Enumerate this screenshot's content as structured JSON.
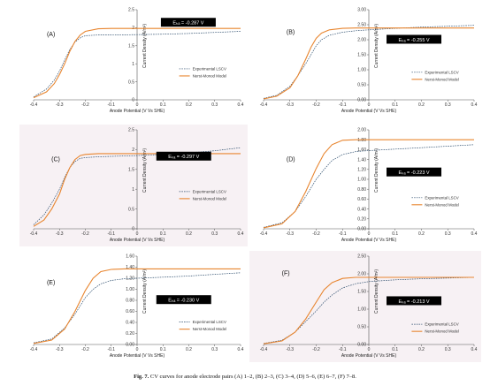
{
  "caption": {
    "fig_label": "Fig. 7.",
    "text": " CV curves for anode electrode pairs (A) 1–2, (B) 2–3, (C) 3–4, (D) 5–6, (E) 6–7, (F) 7–8."
  },
  "colors": {
    "experimental": "#2f4f6f",
    "model": "#e8852f",
    "panel_bg_shaded": "#f7f1f4",
    "ebox_bg": "#000000"
  },
  "chart_data": [
    {
      "type": "line",
      "panel_label": "(A)",
      "xlabel": "Anode Potential (V Vs SHE)",
      "ylabel": "Current Density (A/m²)",
      "xlim": [
        -0.4,
        0.4
      ],
      "ylim": [
        0,
        2.5
      ],
      "xticks": [
        "-0.4",
        "-0.3",
        "-0.2",
        "-0.1",
        "0",
        "0.1",
        "0.2",
        "0.3",
        "0.4"
      ],
      "yticks": [
        "0",
        "0.5",
        "1",
        "1.5",
        "2",
        "2.5"
      ],
      "annotation": "Eₖₐ = -0.287 V",
      "legend": [
        "Experimental LSCV",
        "Nerst-Monod Model"
      ],
      "series": [
        {
          "name": "Experimental LSCV",
          "style": "dashed",
          "x": [
            -0.4,
            -0.35,
            -0.32,
            -0.3,
            -0.28,
            -0.26,
            -0.24,
            -0.22,
            -0.2,
            -0.15,
            -0.1,
            0,
            0.1,
            0.2,
            0.3,
            0.4
          ],
          "y": [
            0.08,
            0.3,
            0.55,
            0.8,
            1.1,
            1.4,
            1.6,
            1.72,
            1.78,
            1.8,
            1.8,
            1.81,
            1.82,
            1.84,
            1.87,
            1.9
          ]
        },
        {
          "name": "Nerst-Monod Model",
          "style": "solid",
          "x": [
            -0.4,
            -0.35,
            -0.32,
            -0.3,
            -0.28,
            -0.26,
            -0.24,
            -0.22,
            -0.2,
            -0.15,
            -0.1,
            0,
            0.1,
            0.2,
            0.3,
            0.4
          ],
          "y": [
            0.06,
            0.22,
            0.45,
            0.7,
            1.0,
            1.35,
            1.62,
            1.8,
            1.9,
            1.97,
            1.98,
            1.98,
            1.98,
            1.98,
            1.98,
            1.98
          ]
        }
      ]
    },
    {
      "type": "line",
      "panel_label": "(B)",
      "xlabel": "Anode Potential (V Vs SHE)",
      "ylabel": "Current Density (A/m²)",
      "xlim": [
        -0.4,
        0.4
      ],
      "ylim": [
        0,
        3.0
      ],
      "xticks": [
        "-0.4",
        "-0.3",
        "-0.2",
        "-0.1",
        "0",
        "0.1",
        "0.2",
        "0.3",
        "0.4"
      ],
      "yticks": [
        "0.00",
        "0.50",
        "1.00",
        "1.50",
        "2.00",
        "2.50",
        "3.00"
      ],
      "annotation": "Eₖₐ = -0.255 V",
      "legend": [
        "Experimental LSCV",
        "Nerst-Monod Model"
      ],
      "series": [
        {
          "name": "Experimental LSCV",
          "style": "dashed",
          "x": [
            -0.4,
            -0.35,
            -0.3,
            -0.27,
            -0.24,
            -0.22,
            -0.2,
            -0.18,
            -0.15,
            -0.1,
            -0.05,
            0,
            0.1,
            0.2,
            0.3,
            0.4
          ],
          "y": [
            0.05,
            0.15,
            0.45,
            0.8,
            1.2,
            1.5,
            1.8,
            2.0,
            2.15,
            2.25,
            2.3,
            2.33,
            2.38,
            2.42,
            2.45,
            2.48
          ]
        },
        {
          "name": "Nerst-Monod Model",
          "style": "solid",
          "x": [
            -0.4,
            -0.35,
            -0.3,
            -0.27,
            -0.24,
            -0.22,
            -0.2,
            -0.18,
            -0.15,
            -0.1,
            -0.05,
            0,
            0.1,
            0.2,
            0.3,
            0.4
          ],
          "y": [
            0.03,
            0.12,
            0.4,
            0.8,
            1.35,
            1.75,
            2.05,
            2.22,
            2.33,
            2.38,
            2.39,
            2.39,
            2.39,
            2.39,
            2.39,
            2.39
          ]
        }
      ]
    },
    {
      "type": "line",
      "panel_label": "(C)",
      "xlabel": "Anode Potential (V Vs SHE)",
      "ylabel": "Current Density (A/m²)",
      "xlim": [
        -0.4,
        0.4
      ],
      "ylim": [
        0,
        2.5
      ],
      "xticks": [
        "-0.4",
        "-0.3",
        "-0.2",
        "-0.1",
        "0",
        "0.1",
        "0.2",
        "0.3",
        "0.4"
      ],
      "yticks": [
        "0",
        "0.5",
        "1",
        "1.5",
        "2",
        "2.5"
      ],
      "annotation": "Eₖₐ = -0.297 V",
      "legend": [
        "Experimental LSCV",
        "Nerst-Monod Model"
      ],
      "series": [
        {
          "name": "Experimental LSCV",
          "style": "dashed",
          "x": [
            -0.4,
            -0.36,
            -0.33,
            -0.3,
            -0.28,
            -0.26,
            -0.24,
            -0.22,
            -0.2,
            -0.15,
            -0.1,
            0,
            0.1,
            0.2,
            0.3,
            0.4
          ],
          "y": [
            0.1,
            0.35,
            0.65,
            1.0,
            1.3,
            1.55,
            1.7,
            1.78,
            1.8,
            1.82,
            1.83,
            1.85,
            1.88,
            1.92,
            1.97,
            2.05
          ]
        },
        {
          "name": "Nerst-Monod Model",
          "style": "solid",
          "x": [
            -0.4,
            -0.36,
            -0.33,
            -0.3,
            -0.28,
            -0.26,
            -0.24,
            -0.22,
            -0.2,
            -0.15,
            -0.1,
            0,
            0.1,
            0.2,
            0.3,
            0.4
          ],
          "y": [
            0.06,
            0.22,
            0.5,
            0.88,
            1.25,
            1.55,
            1.75,
            1.85,
            1.88,
            1.9,
            1.9,
            1.9,
            1.9,
            1.9,
            1.9,
            1.9
          ]
        }
      ]
    },
    {
      "type": "line",
      "panel_label": "(D)",
      "xlabel": "Anode Potential (V Vs SHE)",
      "ylabel": "Current Density (A/m²)",
      "xlim": [
        -0.4,
        0.4
      ],
      "ylim": [
        0,
        2.0
      ],
      "xticks": [
        "-0.4",
        "-0.3",
        "-0.2",
        "-0.1",
        "0",
        "0.1",
        "0.2",
        "0.3",
        "0.4"
      ],
      "yticks": [
        "0.00",
        "0.20",
        "0.40",
        "0.60",
        "0.80",
        "1.00",
        "1.20",
        "1.40",
        "1.60",
        "1.80",
        "2.00"
      ],
      "annotation": "Eₖₐ = -0.223 V",
      "legend": [
        "Experimental LSCV",
        "Nerst-Monod Model"
      ],
      "series": [
        {
          "name": "Experimental LSCV",
          "style": "dashed",
          "x": [
            -0.4,
            -0.33,
            -0.28,
            -0.24,
            -0.2,
            -0.17,
            -0.14,
            -0.1,
            -0.05,
            0,
            0.1,
            0.2,
            0.3,
            0.4
          ],
          "y": [
            0.03,
            0.12,
            0.35,
            0.65,
            1.0,
            1.2,
            1.38,
            1.5,
            1.56,
            1.58,
            1.61,
            1.64,
            1.67,
            1.7
          ]
        },
        {
          "name": "Nerst-Monod Model",
          "style": "solid",
          "x": [
            -0.4,
            -0.33,
            -0.28,
            -0.24,
            -0.2,
            -0.17,
            -0.14,
            -0.1,
            -0.05,
            0,
            0.1,
            0.2,
            0.3,
            0.4
          ],
          "y": [
            0.02,
            0.1,
            0.35,
            0.75,
            1.22,
            1.52,
            1.7,
            1.79,
            1.8,
            1.8,
            1.8,
            1.8,
            1.8,
            1.8
          ]
        }
      ]
    },
    {
      "type": "line",
      "panel_label": "(E)",
      "xlabel": "Anode Potential (V Vs SHE)",
      "ylabel": "Current Density (A/m²)",
      "xlim": [
        -0.4,
        0.4
      ],
      "ylim": [
        0,
        1.6
      ],
      "xticks": [
        "-0.4",
        "-0.3",
        "-0.2",
        "-0.1",
        "0",
        "0.1",
        "0.2",
        "0.3",
        "0.4"
      ],
      "yticks": [
        "0.00",
        "0.20",
        "0.40",
        "0.60",
        "0.80",
        "1.00",
        "1.20",
        "1.40",
        "1.60"
      ],
      "annotation": "Eₖₐ = -0.230 V",
      "legend": [
        "Experimental LSCV",
        "Nerst-Monod Model"
      ],
      "series": [
        {
          "name": "Experimental LSCV",
          "style": "dashed",
          "x": [
            -0.4,
            -0.33,
            -0.28,
            -0.24,
            -0.2,
            -0.17,
            -0.14,
            -0.1,
            -0.05,
            0,
            0.1,
            0.2,
            0.3,
            0.4
          ],
          "y": [
            0.03,
            0.1,
            0.3,
            0.55,
            0.85,
            1.0,
            1.1,
            1.16,
            1.19,
            1.2,
            1.22,
            1.24,
            1.27,
            1.3
          ]
        },
        {
          "name": "Nerst-Monod Model",
          "style": "solid",
          "x": [
            -0.4,
            -0.33,
            -0.28,
            -0.24,
            -0.2,
            -0.17,
            -0.14,
            -0.1,
            -0.05,
            0,
            0.1,
            0.2,
            0.3,
            0.4
          ],
          "y": [
            0.02,
            0.08,
            0.28,
            0.6,
            0.98,
            1.2,
            1.32,
            1.36,
            1.37,
            1.37,
            1.37,
            1.37,
            1.37,
            1.37
          ]
        }
      ]
    },
    {
      "type": "line",
      "panel_label": "(F)",
      "xlabel": "Anode Potential (V Vs SHE)",
      "ylabel": "Current Density (A/m²)",
      "xlim": [
        -0.4,
        0.4
      ],
      "ylim": [
        0,
        2.5
      ],
      "xticks": [
        "-0.4",
        "-0.3",
        "-0.2",
        "-0.1",
        "0",
        "0.1",
        "0.2",
        "0.3",
        "0.4"
      ],
      "yticks": [
        "0.00",
        "0.50",
        "1.00",
        "1.50",
        "2.00",
        "2.50"
      ],
      "annotation": "Eₖₐ = -0.213 V",
      "legend": [
        "Experimental LSCV",
        "Nerst-Monod Model"
      ],
      "series": [
        {
          "name": "Experimental LSCV",
          "style": "dashed",
          "x": [
            -0.4,
            -0.33,
            -0.28,
            -0.24,
            -0.2,
            -0.17,
            -0.14,
            -0.1,
            -0.05,
            0,
            0.1,
            0.2,
            0.3,
            0.4
          ],
          "y": [
            0.03,
            0.12,
            0.35,
            0.65,
            0.95,
            1.2,
            1.4,
            1.6,
            1.72,
            1.78,
            1.83,
            1.86,
            1.88,
            1.9
          ]
        },
        {
          "name": "Nerst-Monod Model",
          "style": "solid",
          "x": [
            -0.4,
            -0.33,
            -0.28,
            -0.24,
            -0.2,
            -0.17,
            -0.14,
            -0.1,
            -0.05,
            0,
            0.1,
            0.2,
            0.3,
            0.4
          ],
          "y": [
            0.02,
            0.1,
            0.35,
            0.72,
            1.2,
            1.55,
            1.75,
            1.87,
            1.9,
            1.9,
            1.9,
            1.9,
            1.9,
            1.9
          ]
        }
      ]
    }
  ]
}
